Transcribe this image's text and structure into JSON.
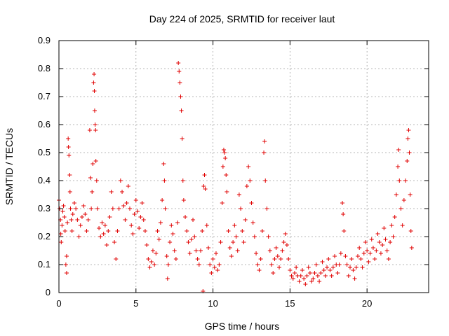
{
  "chart_data": {
    "type": "scatter",
    "title": "Day 224 of 2025, SRMTID for receiver laut",
    "xlabel": "GPS time / hours",
    "ylabel": "SRMTID / TECUs",
    "xlim": [
      0,
      24
    ],
    "ylim": [
      0,
      0.9
    ],
    "xticks": [
      "0",
      "5",
      "10",
      "15",
      "20"
    ],
    "yticks": [
      "0",
      "0.1",
      "0.2",
      "0.3",
      "0.4",
      "0.5",
      "0.6",
      "0.7",
      "0.8",
      "0.9"
    ],
    "grid": true,
    "marker": "+",
    "color": "#e00000",
    "series": [
      {
        "name": "laut",
        "points": [
          [
            0.0,
            0.33
          ],
          [
            0.05,
            0.3
          ],
          [
            0.1,
            0.26
          ],
          [
            0.12,
            0.21
          ],
          [
            0.15,
            0.18
          ],
          [
            0.2,
            0.24
          ],
          [
            0.25,
            0.29
          ],
          [
            0.3,
            0.31
          ],
          [
            0.35,
            0.27
          ],
          [
            0.4,
            0.22
          ],
          [
            0.45,
            0.1
          ],
          [
            0.5,
            0.07
          ],
          [
            0.5,
            0.13
          ],
          [
            0.55,
            0.25
          ],
          [
            0.6,
            0.55
          ],
          [
            0.62,
            0.52
          ],
          [
            0.65,
            0.49
          ],
          [
            0.7,
            0.42
          ],
          [
            0.72,
            0.36
          ],
          [
            0.75,
            0.3
          ],
          [
            0.8,
            0.26
          ],
          [
            0.85,
            0.22
          ],
          [
            0.9,
            0.28
          ],
          [
            1.0,
            0.32
          ],
          [
            1.1,
            0.3
          ],
          [
            1.2,
            0.26
          ],
          [
            1.3,
            0.2
          ],
          [
            1.4,
            0.24
          ],
          [
            1.5,
            0.27
          ],
          [
            1.6,
            0.31
          ],
          [
            1.7,
            0.28
          ],
          [
            1.8,
            0.22
          ],
          [
            1.9,
            0.26
          ],
          [
            2.0,
            0.58
          ],
          [
            2.05,
            0.41
          ],
          [
            2.1,
            0.3
          ],
          [
            2.15,
            0.36
          ],
          [
            2.2,
            0.46
          ],
          [
            2.25,
            0.75
          ],
          [
            2.28,
            0.78
          ],
          [
            2.3,
            0.72
          ],
          [
            2.32,
            0.65
          ],
          [
            2.35,
            0.6
          ],
          [
            2.38,
            0.58
          ],
          [
            2.4,
            0.47
          ],
          [
            2.45,
            0.4
          ],
          [
            2.5,
            0.3
          ],
          [
            2.6,
            0.23
          ],
          [
            2.7,
            0.2
          ],
          [
            2.8,
            0.25
          ],
          [
            2.9,
            0.21
          ],
          [
            3.0,
            0.24
          ],
          [
            3.1,
            0.17
          ],
          [
            3.2,
            0.22
          ],
          [
            3.3,
            0.27
          ],
          [
            3.4,
            0.36
          ],
          [
            3.5,
            0.3
          ],
          [
            3.6,
            0.18
          ],
          [
            3.7,
            0.12
          ],
          [
            3.8,
            0.22
          ],
          [
            3.9,
            0.3
          ],
          [
            4.0,
            0.4
          ],
          [
            4.1,
            0.36
          ],
          [
            4.2,
            0.31
          ],
          [
            4.3,
            0.26
          ],
          [
            4.4,
            0.32
          ],
          [
            4.5,
            0.38
          ],
          [
            4.6,
            0.3
          ],
          [
            4.7,
            0.24
          ],
          [
            4.8,
            0.21
          ],
          [
            4.9,
            0.28
          ],
          [
            5.0,
            0.33
          ],
          [
            5.1,
            0.29
          ],
          [
            5.2,
            0.23
          ],
          [
            5.3,
            0.27
          ],
          [
            5.4,
            0.32
          ],
          [
            5.5,
            0.26
          ],
          [
            5.6,
            0.22
          ],
          [
            5.7,
            0.17
          ],
          [
            5.8,
            0.12
          ],
          [
            5.9,
            0.09
          ],
          [
            6.0,
            0.11
          ],
          [
            6.1,
            0.15
          ],
          [
            6.2,
            0.1
          ],
          [
            6.3,
            0.14
          ],
          [
            6.4,
            0.22
          ],
          [
            6.5,
            0.19
          ],
          [
            6.6,
            0.25
          ],
          [
            6.7,
            0.33
          ],
          [
            6.8,
            0.46
          ],
          [
            6.85,
            0.4
          ],
          [
            6.9,
            0.3
          ],
          [
            7.0,
            0.13
          ],
          [
            7.05,
            0.05
          ],
          [
            7.1,
            0.1
          ],
          [
            7.2,
            0.18
          ],
          [
            7.3,
            0.24
          ],
          [
            7.4,
            0.21
          ],
          [
            7.5,
            0.15
          ],
          [
            7.6,
            0.12
          ],
          [
            7.7,
            0.25
          ],
          [
            7.75,
            0.82
          ],
          [
            7.8,
            0.79
          ],
          [
            7.85,
            0.75
          ],
          [
            7.9,
            0.7
          ],
          [
            7.95,
            0.65
          ],
          [
            8.0,
            0.55
          ],
          [
            8.05,
            0.4
          ],
          [
            8.1,
            0.33
          ],
          [
            8.2,
            0.27
          ],
          [
            8.3,
            0.22
          ],
          [
            8.4,
            0.18
          ],
          [
            8.5,
            0.14
          ],
          [
            8.6,
            0.19
          ],
          [
            8.7,
            0.26
          ],
          [
            8.8,
            0.2
          ],
          [
            8.9,
            0.15
          ],
          [
            9.0,
            0.12
          ],
          [
            9.1,
            0.1
          ],
          [
            9.2,
            0.15
          ],
          [
            9.3,
            0.22
          ],
          [
            9.35,
            0.005
          ],
          [
            9.4,
            0.38
          ],
          [
            9.45,
            0.42
          ],
          [
            9.5,
            0.37
          ],
          [
            9.6,
            0.24
          ],
          [
            9.7,
            0.16
          ],
          [
            9.8,
            0.1
          ],
          [
            9.9,
            0.07
          ],
          [
            10.0,
            0.12
          ],
          [
            10.1,
            0.09
          ],
          [
            10.2,
            0.14
          ],
          [
            10.3,
            0.08
          ],
          [
            10.4,
            0.1
          ],
          [
            10.5,
            0.18
          ],
          [
            10.6,
            0.32
          ],
          [
            10.65,
            0.45
          ],
          [
            10.7,
            0.51
          ],
          [
            10.75,
            0.5
          ],
          [
            10.8,
            0.48
          ],
          [
            10.85,
            0.42
          ],
          [
            10.9,
            0.36
          ],
          [
            11.0,
            0.22
          ],
          [
            11.1,
            0.16
          ],
          [
            11.2,
            0.13
          ],
          [
            11.3,
            0.18
          ],
          [
            11.4,
            0.24
          ],
          [
            11.5,
            0.2
          ],
          [
            11.6,
            0.15
          ],
          [
            11.7,
            0.35
          ],
          [
            11.8,
            0.3
          ],
          [
            11.9,
            0.22
          ],
          [
            12.0,
            0.18
          ],
          [
            12.1,
            0.26
          ],
          [
            12.2,
            0.38
          ],
          [
            12.3,
            0.45
          ],
          [
            12.4,
            0.4
          ],
          [
            12.5,
            0.32
          ],
          [
            12.6,
            0.25
          ],
          [
            12.7,
            0.2
          ],
          [
            12.8,
            0.14
          ],
          [
            12.9,
            0.1
          ],
          [
            13.0,
            0.08
          ],
          [
            13.1,
            0.12
          ],
          [
            13.2,
            0.22
          ],
          [
            13.3,
            0.5
          ],
          [
            13.35,
            0.54
          ],
          [
            13.4,
            0.4
          ],
          [
            13.5,
            0.3
          ],
          [
            13.6,
            0.2
          ],
          [
            13.7,
            0.15
          ],
          [
            13.8,
            0.1
          ],
          [
            13.9,
            0.07
          ],
          [
            14.0,
            0.12
          ],
          [
            14.1,
            0.16
          ],
          [
            14.2,
            0.13
          ],
          [
            14.3,
            0.09
          ],
          [
            14.4,
            0.12
          ],
          [
            14.5,
            0.15
          ],
          [
            14.6,
            0.18
          ],
          [
            14.7,
            0.21
          ],
          [
            14.8,
            0.17
          ],
          [
            14.9,
            0.12
          ],
          [
            15.0,
            0.08
          ],
          [
            15.1,
            0.06
          ],
          [
            15.2,
            0.05
          ],
          [
            15.3,
            0.07
          ],
          [
            15.4,
            0.09
          ],
          [
            15.5,
            0.06
          ],
          [
            15.6,
            0.04
          ],
          [
            15.7,
            0.06
          ],
          [
            15.8,
            0.08
          ],
          [
            15.9,
            0.05
          ],
          [
            16.0,
            0.03
          ],
          [
            16.1,
            0.06
          ],
          [
            16.2,
            0.09
          ],
          [
            16.3,
            0.07
          ],
          [
            16.4,
            0.04
          ],
          [
            16.5,
            0.05
          ],
          [
            16.6,
            0.07
          ],
          [
            16.7,
            0.1
          ],
          [
            16.8,
            0.06
          ],
          [
            16.9,
            0.04
          ],
          [
            17.0,
            0.07
          ],
          [
            17.1,
            0.11
          ],
          [
            17.2,
            0.08
          ],
          [
            17.3,
            0.06
          ],
          [
            17.4,
            0.09
          ],
          [
            17.5,
            0.12
          ],
          [
            17.6,
            0.08
          ],
          [
            17.7,
            0.06
          ],
          [
            17.8,
            0.09
          ],
          [
            17.9,
            0.13
          ],
          [
            18.0,
            0.1
          ],
          [
            18.1,
            0.07
          ],
          [
            18.2,
            0.1
          ],
          [
            18.3,
            0.14
          ],
          [
            18.4,
            0.32
          ],
          [
            18.45,
            0.28
          ],
          [
            18.5,
            0.22
          ],
          [
            18.6,
            0.13
          ],
          [
            18.7,
            0.1
          ],
          [
            18.8,
            0.06
          ],
          [
            18.9,
            0.09
          ],
          [
            19.0,
            0.12
          ],
          [
            19.1,
            0.08
          ],
          [
            19.2,
            0.05
          ],
          [
            19.3,
            0.09
          ],
          [
            19.4,
            0.13
          ],
          [
            19.5,
            0.16
          ],
          [
            19.6,
            0.12
          ],
          [
            19.7,
            0.09
          ],
          [
            19.8,
            0.14
          ],
          [
            19.9,
            0.18
          ],
          [
            20.0,
            0.15
          ],
          [
            20.1,
            0.11
          ],
          [
            20.2,
            0.14
          ],
          [
            20.3,
            0.19
          ],
          [
            20.4,
            0.16
          ],
          [
            20.5,
            0.12
          ],
          [
            20.6,
            0.15
          ],
          [
            20.7,
            0.21
          ],
          [
            20.8,
            0.18
          ],
          [
            20.9,
            0.14
          ],
          [
            21.0,
            0.17
          ],
          [
            21.1,
            0.23
          ],
          [
            21.2,
            0.19
          ],
          [
            21.3,
            0.15
          ],
          [
            21.4,
            0.12
          ],
          [
            21.5,
            0.18
          ],
          [
            21.6,
            0.24
          ],
          [
            21.7,
            0.2
          ],
          [
            21.8,
            0.27
          ],
          [
            21.9,
            0.35
          ],
          [
            22.0,
            0.45
          ],
          [
            22.05,
            0.51
          ],
          [
            22.1,
            0.4
          ],
          [
            22.2,
            0.3
          ],
          [
            22.3,
            0.24
          ],
          [
            22.4,
            0.33
          ],
          [
            22.5,
            0.4
          ],
          [
            22.6,
            0.47
          ],
          [
            22.65,
            0.55
          ],
          [
            22.7,
            0.58
          ],
          [
            22.75,
            0.5
          ],
          [
            22.8,
            0.35
          ],
          [
            22.85,
            0.22
          ],
          [
            22.9,
            0.16
          ]
        ]
      }
    ]
  }
}
